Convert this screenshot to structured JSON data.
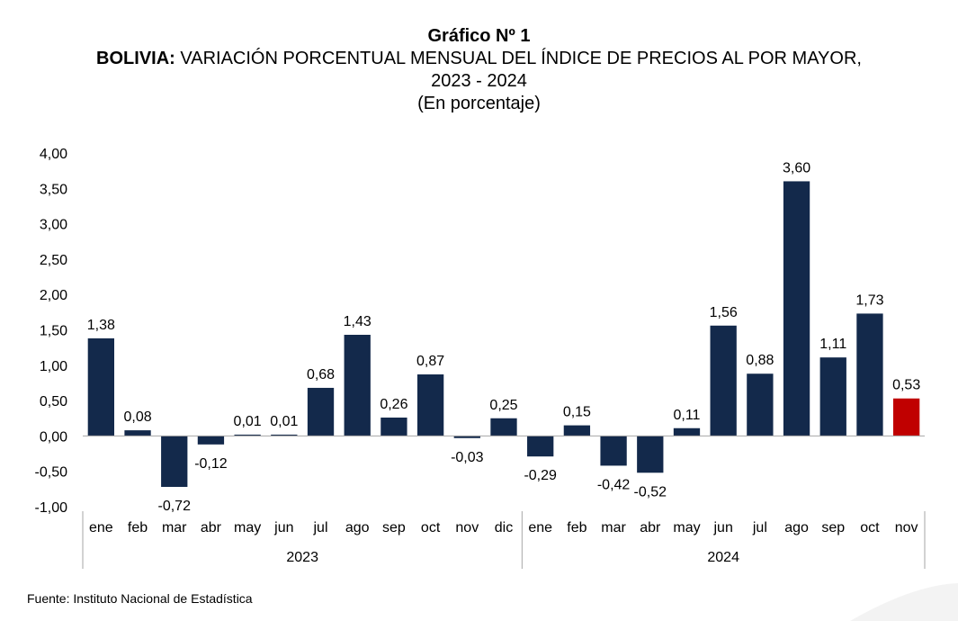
{
  "header": {
    "title": "Gráfico Nº 1",
    "subtitle_bold": "BOLIVIA:",
    "subtitle_rest": " VARIACIÓN PORCENTUAL MENSUAL DEL ÍNDICE DE PRECIOS AL POR MAYOR,",
    "period": "2023 - 2024",
    "unit": "(En porcentaje)"
  },
  "source": "Fuente: Instituto Nacional de Estadística",
  "colors": {
    "bar": "#13294b",
    "highlight": "#c00000",
    "axis": "#a6a6a6"
  },
  "chart_data": {
    "type": "bar",
    "title": "BOLIVIA: VARIACIÓN PORCENTUAL MENSUAL DEL ÍNDICE DE PRECIOS AL POR MAYOR, 2023 - 2024",
    "ylim": [
      -1.0,
      4.0
    ],
    "yticks": [
      "-1,00",
      "-0,50",
      "0,00",
      "0,50",
      "1,00",
      "1,50",
      "2,00",
      "2,50",
      "3,00",
      "3,50",
      "4,00"
    ],
    "grid": false,
    "legend": "none",
    "groups": [
      {
        "label": "2023",
        "categories": [
          "ene",
          "feb",
          "mar",
          "abr",
          "may",
          "jun",
          "jul",
          "ago",
          "sep",
          "oct",
          "nov",
          "dic"
        ]
      },
      {
        "label": "2024",
        "categories": [
          "ene",
          "feb",
          "mar",
          "abr",
          "may",
          "jun",
          "jul",
          "ago",
          "sep",
          "oct",
          "nov"
        ]
      }
    ],
    "values": [
      1.38,
      0.08,
      -0.72,
      -0.12,
      0.01,
      0.01,
      0.68,
      1.43,
      0.26,
      0.87,
      -0.03,
      0.25,
      -0.29,
      0.15,
      -0.42,
      -0.52,
      0.11,
      1.56,
      0.88,
      3.6,
      1.11,
      1.73,
      0.53
    ],
    "labels": [
      "1,38",
      "0,08",
      "-0,72",
      "-0,12",
      "0,01",
      "0,01",
      "0,68",
      "1,43",
      "0,26",
      "0,87",
      "-0,03",
      "0,25",
      "-0,29",
      "0,15",
      "-0,42",
      "-0,52",
      "0,11",
      "1,56",
      "0,88",
      "3,60",
      "1,11",
      "1,73",
      "0,53"
    ],
    "highlight_index": 22
  }
}
